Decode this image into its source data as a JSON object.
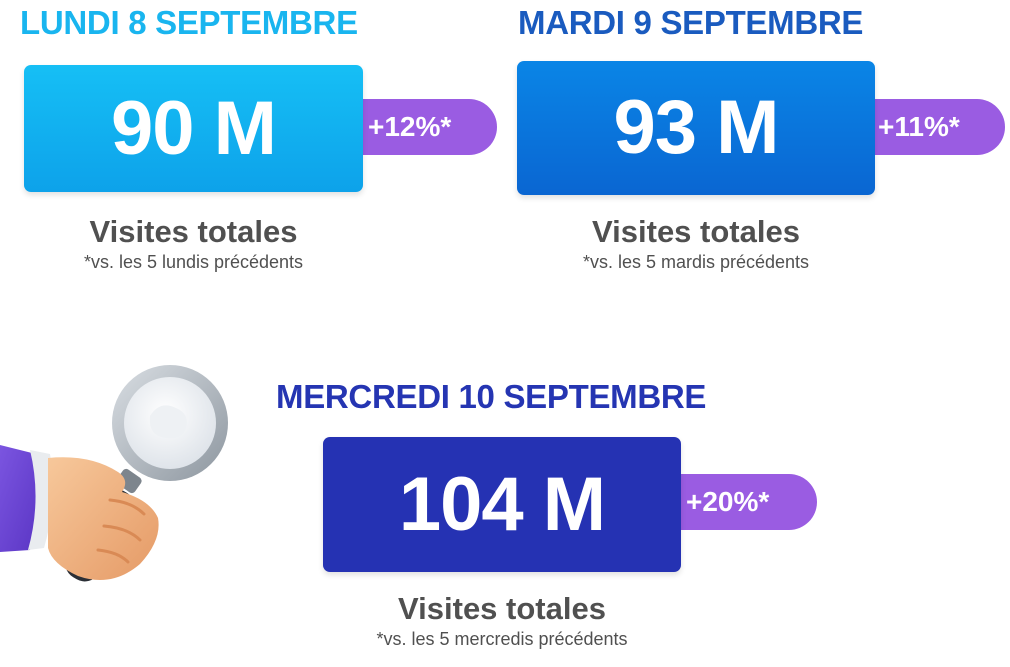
{
  "colors": {
    "monday_title": "#19b5ef",
    "monday_box": "#12aaf0",
    "tuesday_title": "#1a5bbf",
    "tuesday_box": "#0a74db",
    "wednesday_title": "#2535b2",
    "wednesday_box": "#2532b3",
    "pill": "#9a5ce2",
    "caption": "#505050"
  },
  "days": [
    {
      "title": "LUNDI 8 SEPTEMBRE",
      "value": "90 M",
      "change": "+12%*",
      "label": "Visites totales",
      "note": "*vs. les 5 lundis précédents"
    },
    {
      "title": "MARDI 9 SEPTEMBRE",
      "value": "93 M",
      "change": "+11%*",
      "label": "Visites totales",
      "note": "*vs. les 5 mardis précédents"
    },
    {
      "title": "MERCREDI 10 SEPTEMBRE",
      "value": "104 M",
      "change": "+20%*",
      "label": "Visites totales",
      "note": "*vs. les 5 mercredis précédents"
    }
  ],
  "illustration": {
    "icon": "hand-holding-magnifying-glass-icon"
  }
}
